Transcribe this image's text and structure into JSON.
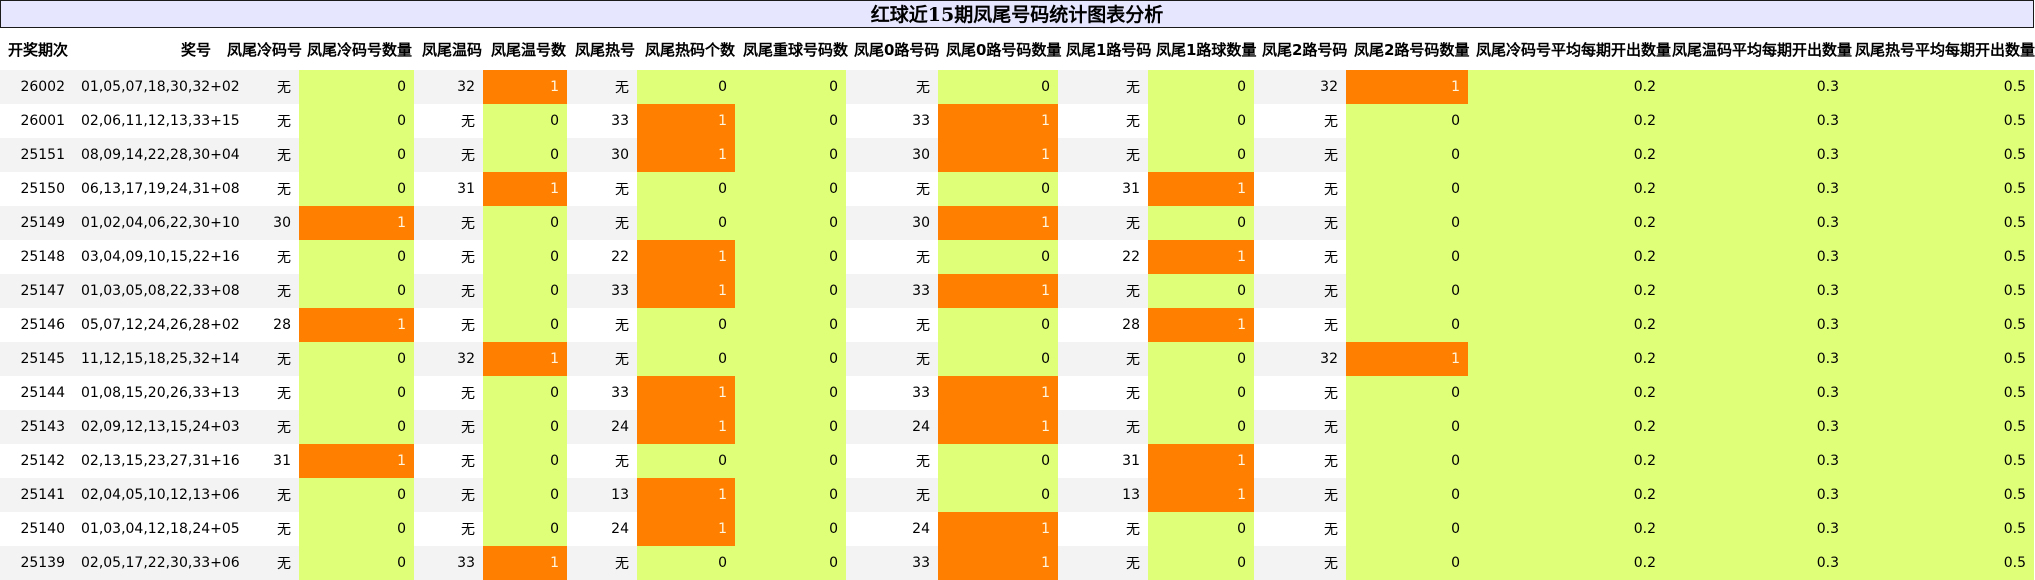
{
  "title": "红球近15期凤尾号码统计图表分析",
  "colors": {
    "title_bg": "#e6e6ff",
    "highlight_green": "#e0ff79",
    "highlight_orange": "#ff8000",
    "zebra": "#f3f3f3"
  },
  "headers": [
    "开奖期次",
    "奖号",
    "凤尾冷码号",
    "凤尾冷码号数量",
    "凤尾温码",
    "凤尾温号数",
    "凤尾热号",
    "凤尾热码个数",
    "凤尾重球号码数",
    "凤尾0路号码",
    "凤尾0路号码数量",
    "凤尾1路号码",
    "凤尾1路球数量",
    "凤尾2路号码",
    "凤尾2路号码数量",
    "凤尾冷码号平均每期开出数量",
    "凤尾温码平均每期开出数量",
    "凤尾热号平均每期开出数量"
  ],
  "rows": [
    [
      "26002",
      "01,05,07,18,30,32+02",
      "无",
      "0",
      "32",
      "1",
      "无",
      "0",
      "0",
      "无",
      "0",
      "无",
      "0",
      "32",
      "1",
      "0.2",
      "0.3",
      "0.5"
    ],
    [
      "26001",
      "02,06,11,12,13,33+15",
      "无",
      "0",
      "无",
      "0",
      "33",
      "1",
      "0",
      "33",
      "1",
      "无",
      "0",
      "无",
      "0",
      "0.2",
      "0.3",
      "0.5"
    ],
    [
      "25151",
      "08,09,14,22,28,30+04",
      "无",
      "0",
      "无",
      "0",
      "30",
      "1",
      "0",
      "30",
      "1",
      "无",
      "0",
      "无",
      "0",
      "0.2",
      "0.3",
      "0.5"
    ],
    [
      "25150",
      "06,13,17,19,24,31+08",
      "无",
      "0",
      "31",
      "1",
      "无",
      "0",
      "0",
      "无",
      "0",
      "31",
      "1",
      "无",
      "0",
      "0.2",
      "0.3",
      "0.5"
    ],
    [
      "25149",
      "01,02,04,06,22,30+10",
      "30",
      "1",
      "无",
      "0",
      "无",
      "0",
      "0",
      "30",
      "1",
      "无",
      "0",
      "无",
      "0",
      "0.2",
      "0.3",
      "0.5"
    ],
    [
      "25148",
      "03,04,09,10,15,22+16",
      "无",
      "0",
      "无",
      "0",
      "22",
      "1",
      "0",
      "无",
      "0",
      "22",
      "1",
      "无",
      "0",
      "0.2",
      "0.3",
      "0.5"
    ],
    [
      "25147",
      "01,03,05,08,22,33+08",
      "无",
      "0",
      "无",
      "0",
      "33",
      "1",
      "0",
      "33",
      "1",
      "无",
      "0",
      "无",
      "0",
      "0.2",
      "0.3",
      "0.5"
    ],
    [
      "25146",
      "05,07,12,24,26,28+02",
      "28",
      "1",
      "无",
      "0",
      "无",
      "0",
      "0",
      "无",
      "0",
      "28",
      "1",
      "无",
      "0",
      "0.2",
      "0.3",
      "0.5"
    ],
    [
      "25145",
      "11,12,15,18,25,32+14",
      "无",
      "0",
      "32",
      "1",
      "无",
      "0",
      "0",
      "无",
      "0",
      "无",
      "0",
      "32",
      "1",
      "0.2",
      "0.3",
      "0.5"
    ],
    [
      "25144",
      "01,08,15,20,26,33+13",
      "无",
      "0",
      "无",
      "0",
      "33",
      "1",
      "0",
      "33",
      "1",
      "无",
      "0",
      "无",
      "0",
      "0.2",
      "0.3",
      "0.5"
    ],
    [
      "25143",
      "02,09,12,13,15,24+03",
      "无",
      "0",
      "无",
      "0",
      "24",
      "1",
      "0",
      "24",
      "1",
      "无",
      "0",
      "无",
      "0",
      "0.2",
      "0.3",
      "0.5"
    ],
    [
      "25142",
      "02,13,15,23,27,31+16",
      "31",
      "1",
      "无",
      "0",
      "无",
      "0",
      "0",
      "无",
      "0",
      "31",
      "1",
      "无",
      "0",
      "0.2",
      "0.3",
      "0.5"
    ],
    [
      "25141",
      "02,04,05,10,12,13+06",
      "无",
      "0",
      "无",
      "0",
      "13",
      "1",
      "0",
      "无",
      "0",
      "13",
      "1",
      "无",
      "0",
      "0.2",
      "0.3",
      "0.5"
    ],
    [
      "25140",
      "01,03,04,12,18,24+05",
      "无",
      "0",
      "无",
      "0",
      "24",
      "1",
      "0",
      "24",
      "1",
      "无",
      "0",
      "无",
      "0",
      "0.2",
      "0.3",
      "0.5"
    ],
    [
      "25139",
      "02,05,17,22,30,33+06",
      "无",
      "0",
      "33",
      "1",
      "无",
      "0",
      "0",
      "33",
      "1",
      "无",
      "0",
      "无",
      "0",
      "0.2",
      "0.3",
      "0.5"
    ]
  ]
}
